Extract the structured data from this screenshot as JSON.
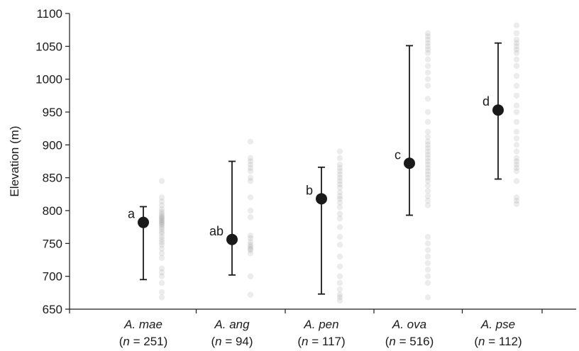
{
  "chart_data": {
    "type": "scatter",
    "title": "",
    "xlabel": "",
    "ylabel": "Elevation (m)",
    "ylim": [
      650,
      1100
    ],
    "yticks": [
      650,
      700,
      750,
      800,
      850,
      900,
      950,
      1000,
      1050,
      1100
    ],
    "grid": false,
    "colors": {
      "mean_marker": "#1a1a1a",
      "error_bar": "#1a1a1a",
      "raw_points": "#6e6e6e",
      "axis": "#1a1a1a"
    },
    "categories": [
      {
        "species": "A. mae",
        "n_prefix": "(",
        "n_italic": "n",
        "n_suffix": " = 251)",
        "mean": 782,
        "lower": 695,
        "upper": 806,
        "group": "a",
        "raw": [
          668,
          676,
          690,
          700,
          706,
          712,
          728,
          735,
          742,
          748,
          752,
          756,
          760,
          765,
          768,
          772,
          775,
          778,
          780,
          782,
          784,
          786,
          788,
          790,
          792,
          795,
          798,
          802,
          808,
          814,
          820,
          845
        ]
      },
      {
        "species": "A. ang",
        "n_prefix": "(",
        "n_italic": "n",
        "n_suffix": " = 94)",
        "mean": 756,
        "lower": 702,
        "upper": 875,
        "group": "ab",
        "raw": [
          672,
          700,
          735,
          740,
          742,
          745,
          748,
          752,
          758,
          762,
          790,
          800,
          820,
          845,
          850,
          860,
          865,
          870,
          875,
          880,
          905
        ]
      },
      {
        "species": "A. pen",
        "n_prefix": "(",
        "n_italic": "n",
        "n_suffix": " = 117)",
        "mean": 818,
        "lower": 673,
        "upper": 866,
        "group": "b",
        "raw": [
          663,
          668,
          672,
          680,
          690,
          700,
          715,
          730,
          748,
          760,
          775,
          788,
          795,
          805,
          812,
          818,
          822,
          828,
          835,
          840,
          845,
          850,
          855,
          860,
          865,
          870,
          880,
          890
        ]
      },
      {
        "species": "A. ova",
        "n_prefix": "(",
        "n_italic": "n",
        "n_suffix": " = 516)",
        "mean": 872,
        "lower": 793,
        "upper": 1051,
        "group": "c",
        "raw": [
          668,
          690,
          700,
          710,
          720,
          730,
          740,
          750,
          760,
          808,
          815,
          822,
          830,
          838,
          845,
          850,
          855,
          860,
          865,
          870,
          875,
          880,
          885,
          890,
          895,
          900,
          905,
          912,
          920,
          935,
          950,
          970,
          990,
          1000,
          1010,
          1020,
          1030,
          1040,
          1045,
          1050,
          1055,
          1060,
          1065,
          1070
        ]
      },
      {
        "species": "A. pse",
        "n_prefix": "(",
        "n_italic": "n",
        "n_suffix": " = 112)",
        "mean": 953,
        "lower": 848,
        "upper": 1055,
        "group": "d",
        "raw": [
          810,
          815,
          820,
          845,
          860,
          865,
          870,
          875,
          880,
          890,
          900,
          910,
          920,
          935,
          950,
          960,
          975,
          990,
          1005,
          1020,
          1030,
          1040,
          1045,
          1050,
          1055,
          1060,
          1070,
          1082
        ]
      }
    ]
  }
}
